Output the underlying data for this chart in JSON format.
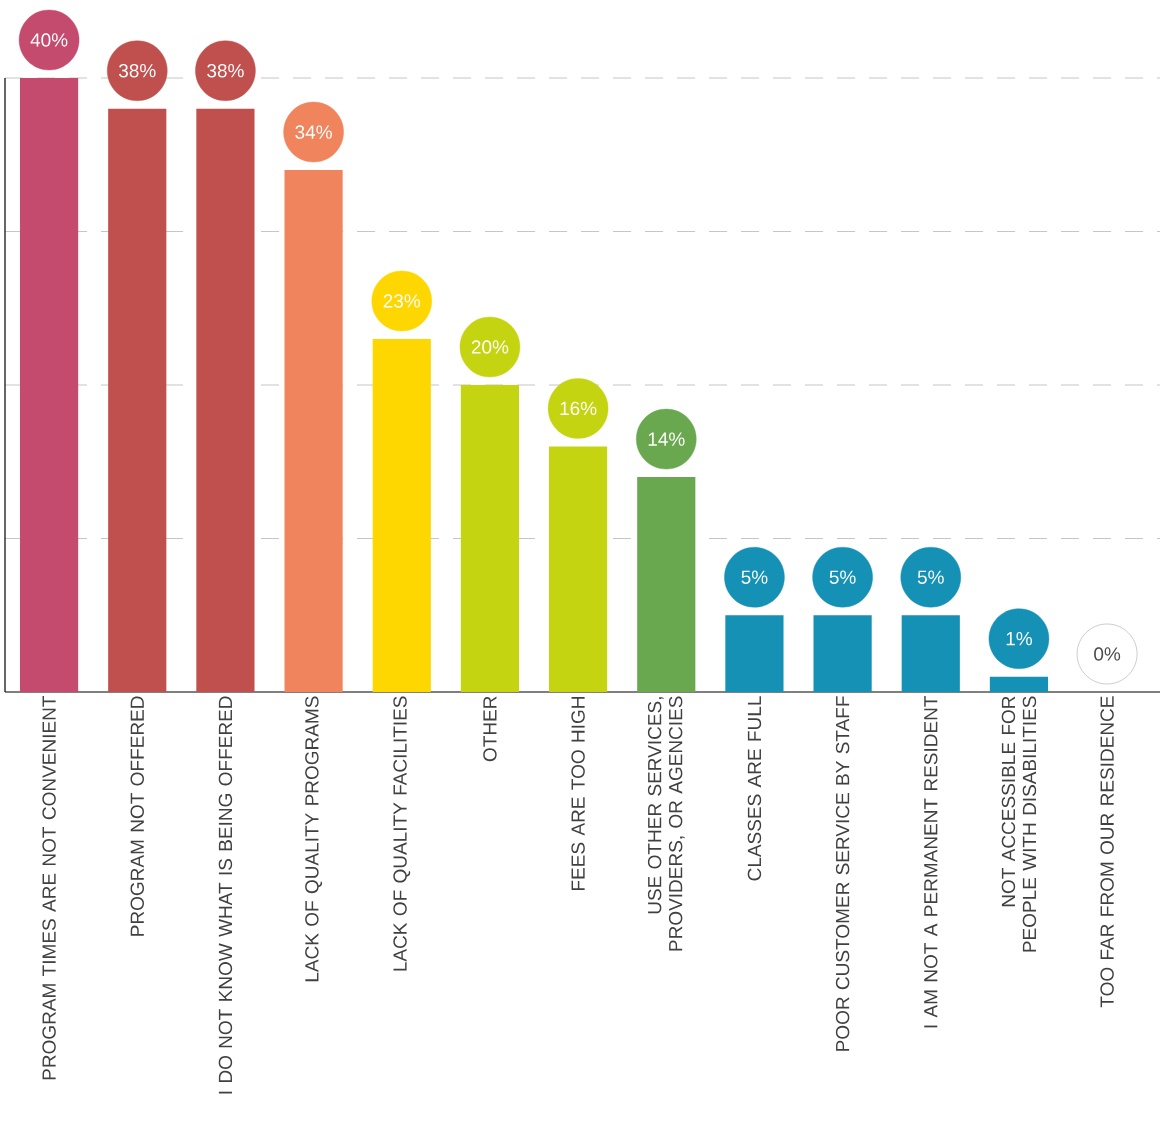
{
  "chart_data": {
    "type": "bar",
    "categories": [
      "PROGRAM TIMES ARE NOT CONVENIENT",
      "PROGRAM NOT OFFERED",
      "I DO NOT KNOW WHAT IS BEING OFFERED",
      "LACK OF QUALITY PROGRAMS",
      "LACK OF QUALITY FACILITIES",
      "OTHER",
      "FEES ARE TOO HIGH",
      "USE OTHER SERVICES, PROVIDERS, OR AGENCIES",
      "CLASSES ARE FULL",
      "POOR CUSTOMER SERVICE BY STAFF",
      "I AM NOT A PERMANENT RESIDENT",
      "NOT ACCESSIBLE FOR PEOPLE WITH DISABILITIES",
      "TOO FAR FROM OUR RESIDENCE"
    ],
    "values": [
      40,
      38,
      38,
      34,
      23,
      20,
      16,
      14,
      5,
      5,
      5,
      1,
      0
    ],
    "value_labels": [
      "40%",
      "38%",
      "38%",
      "34%",
      "23%",
      "20%",
      "16%",
      "14%",
      "5%",
      "5%",
      "5%",
      "1%",
      "0%"
    ],
    "colors": [
      "#c44a6e",
      "#c0504d",
      "#c0504d",
      "#f0845c",
      "#ffd700",
      "#c5d410",
      "#c5d410",
      "#6aa84f",
      "#1591b5",
      "#1591b5",
      "#1591b5",
      "#1591b5",
      "#ffffff"
    ],
    "ylim": [
      0,
      40
    ],
    "yticks": [
      {
        "value": 10,
        "label": null
      },
      {
        "value": 20,
        "label": null
      },
      {
        "value": 30,
        "label": null
      },
      {
        "value": 40,
        "label": null
      }
    ],
    "grid": "y",
    "tick_labels": "x"
  }
}
